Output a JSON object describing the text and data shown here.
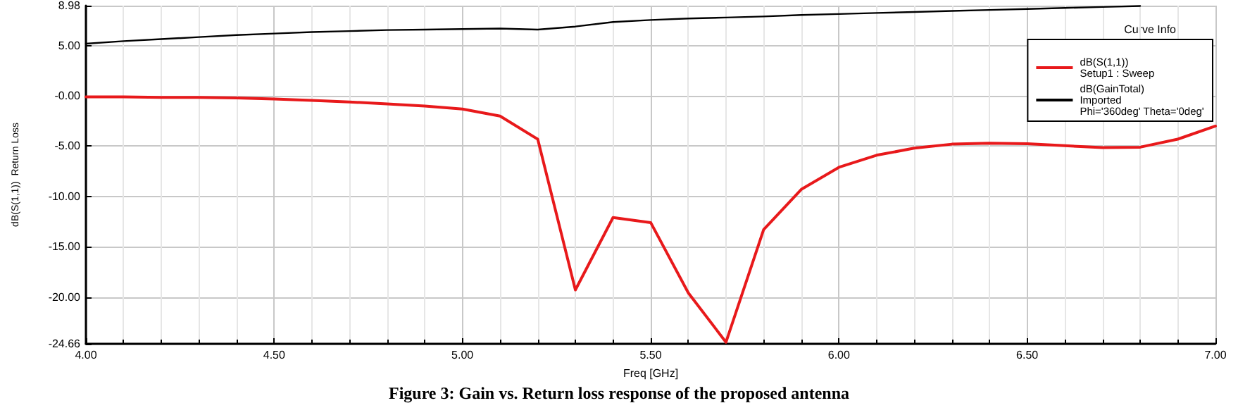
{
  "chart_data": {
    "type": "line",
    "xlabel": "Freq [GHz]",
    "ylabel": "dB(S(1,1))  Return Loss",
    "legend_title": "Curve Info",
    "annotations": [
      "Figure 3: Gain vs. Return loss response of the proposed antenna"
    ],
    "x": [
      4.0,
      4.1,
      4.2,
      4.3,
      4.4,
      4.5,
      4.6,
      4.7,
      4.8,
      4.9,
      5.0,
      5.1,
      5.2,
      5.3,
      5.4,
      5.5,
      5.6,
      5.7,
      5.8,
      5.9,
      6.0,
      6.1,
      6.2,
      6.3,
      6.4,
      6.5,
      6.6,
      6.7,
      6.8,
      6.9,
      7.0
    ],
    "series": [
      {
        "name": "dB(S(1,1))\nSetup1 : Sweep",
        "color": "#e8191b",
        "values": [
          -0.1,
          -0.1,
          -0.15,
          -0.15,
          -0.2,
          -0.3,
          -0.45,
          -0.6,
          -0.8,
          -1.0,
          -1.3,
          -2.0,
          -4.3,
          -19.3,
          -12.1,
          -12.6,
          -19.6,
          -24.5,
          -13.3,
          -9.3,
          -7.1,
          -5.9,
          -5.2,
          -4.8,
          -4.7,
          -4.75,
          -4.95,
          -5.15,
          -5.1,
          -4.3,
          -3.0
        ]
      },
      {
        "name": "dB(GainTotal)\nImported\nPhi='360deg' Theta='0deg'",
        "color": "#000000",
        "values": [
          5.2,
          5.45,
          5.65,
          5.85,
          6.05,
          6.2,
          6.35,
          6.45,
          6.55,
          6.6,
          6.65,
          6.7,
          6.6,
          6.9,
          7.35,
          7.55,
          7.7,
          7.8,
          7.9,
          8.05,
          8.15,
          8.25,
          8.35,
          8.45,
          8.55,
          8.65,
          8.75,
          8.85,
          8.95,
          null,
          null
        ]
      }
    ],
    "xlim": [
      4.0,
      7.0
    ],
    "xticks": [
      {
        "value": 4.0,
        "label": "4.00"
      },
      {
        "value": 4.5,
        "label": "4.50"
      },
      {
        "value": 5.0,
        "label": "5.00"
      },
      {
        "value": 5.5,
        "label": "5.50"
      },
      {
        "value": 6.0,
        "label": "6.00"
      },
      {
        "value": 6.5,
        "label": "6.50"
      },
      {
        "value": 7.0,
        "label": "7.00"
      }
    ],
    "ylim": [
      -24.66,
      8.98
    ],
    "yticks": [
      {
        "value": -24.66,
        "label": "-24.66"
      },
      {
        "value": -20,
        "label": "-20.00"
      },
      {
        "value": -15,
        "label": "-15.00"
      },
      {
        "value": -10,
        "label": "-10.00"
      },
      {
        "value": -5,
        "label": "-5.00"
      },
      {
        "value": 0,
        "label": "-0.00"
      },
      {
        "value": 5,
        "label": "5.00"
      },
      {
        "value": 8.98,
        "label": "8.98"
      }
    ],
    "grid": true,
    "legend": "top right",
    "marker": "none",
    "line_style": "solid"
  }
}
